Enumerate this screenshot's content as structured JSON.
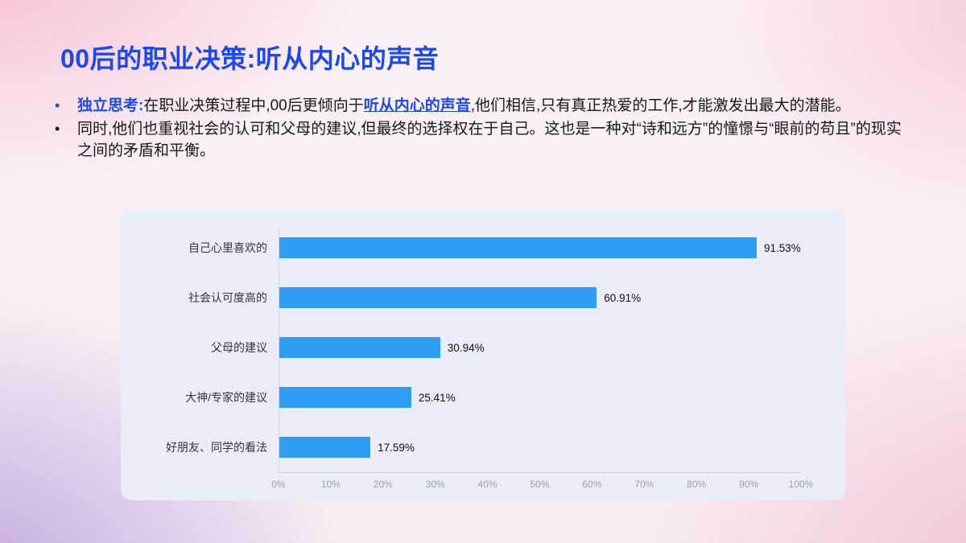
{
  "title": "00后的职业决策:听从内心的声音",
  "bullet_char": "•",
  "bullets": {
    "b1": {
      "lead": "独立思考:",
      "part1": "在职业决策过程中,00后更倾向于",
      "highlight": "听从内心的声音",
      "part2": ",他们相信,只有真正热爱的工作,才能激发出最大的潜能。"
    },
    "b2": {
      "text": "同时,他们也重视社会的认可和父母的建议,但最终的选择权在于自己。这也是一种对“诗和远方”的憧憬与“眼前的苟且”的现实之间的矛盾和平衡。"
    }
  },
  "chart_data": {
    "type": "bar",
    "orientation": "horizontal",
    "title": "",
    "xlabel": "",
    "ylabel": "",
    "categories": [
      "自己心里喜欢的",
      "社会认可度高的",
      "父母的建议",
      "大神/专家的建议",
      "好朋友、同学的看法"
    ],
    "values": [
      91.53,
      60.91,
      30.94,
      25.41,
      17.59
    ],
    "value_labels": [
      "91.53%",
      "60.91%",
      "30.94%",
      "25.41%",
      "17.59%"
    ],
    "xlim": [
      0,
      100
    ],
    "x_ticks": [
      "0%",
      "10%",
      "20%",
      "30%",
      "40%",
      "50%",
      "60%",
      "70%",
      "80%",
      "90%",
      "100%"
    ],
    "grid": false,
    "legend": false,
    "bar_color": "#2e9df3",
    "panel_background": "#e9edf8"
  },
  "colors": {
    "accent_blue": "#1e49e6",
    "bar_blue": "#2e9df3",
    "panel_background": "#e9edf8",
    "background_pink": "#f6b6cd",
    "background_purple": "#b89cdc"
  }
}
